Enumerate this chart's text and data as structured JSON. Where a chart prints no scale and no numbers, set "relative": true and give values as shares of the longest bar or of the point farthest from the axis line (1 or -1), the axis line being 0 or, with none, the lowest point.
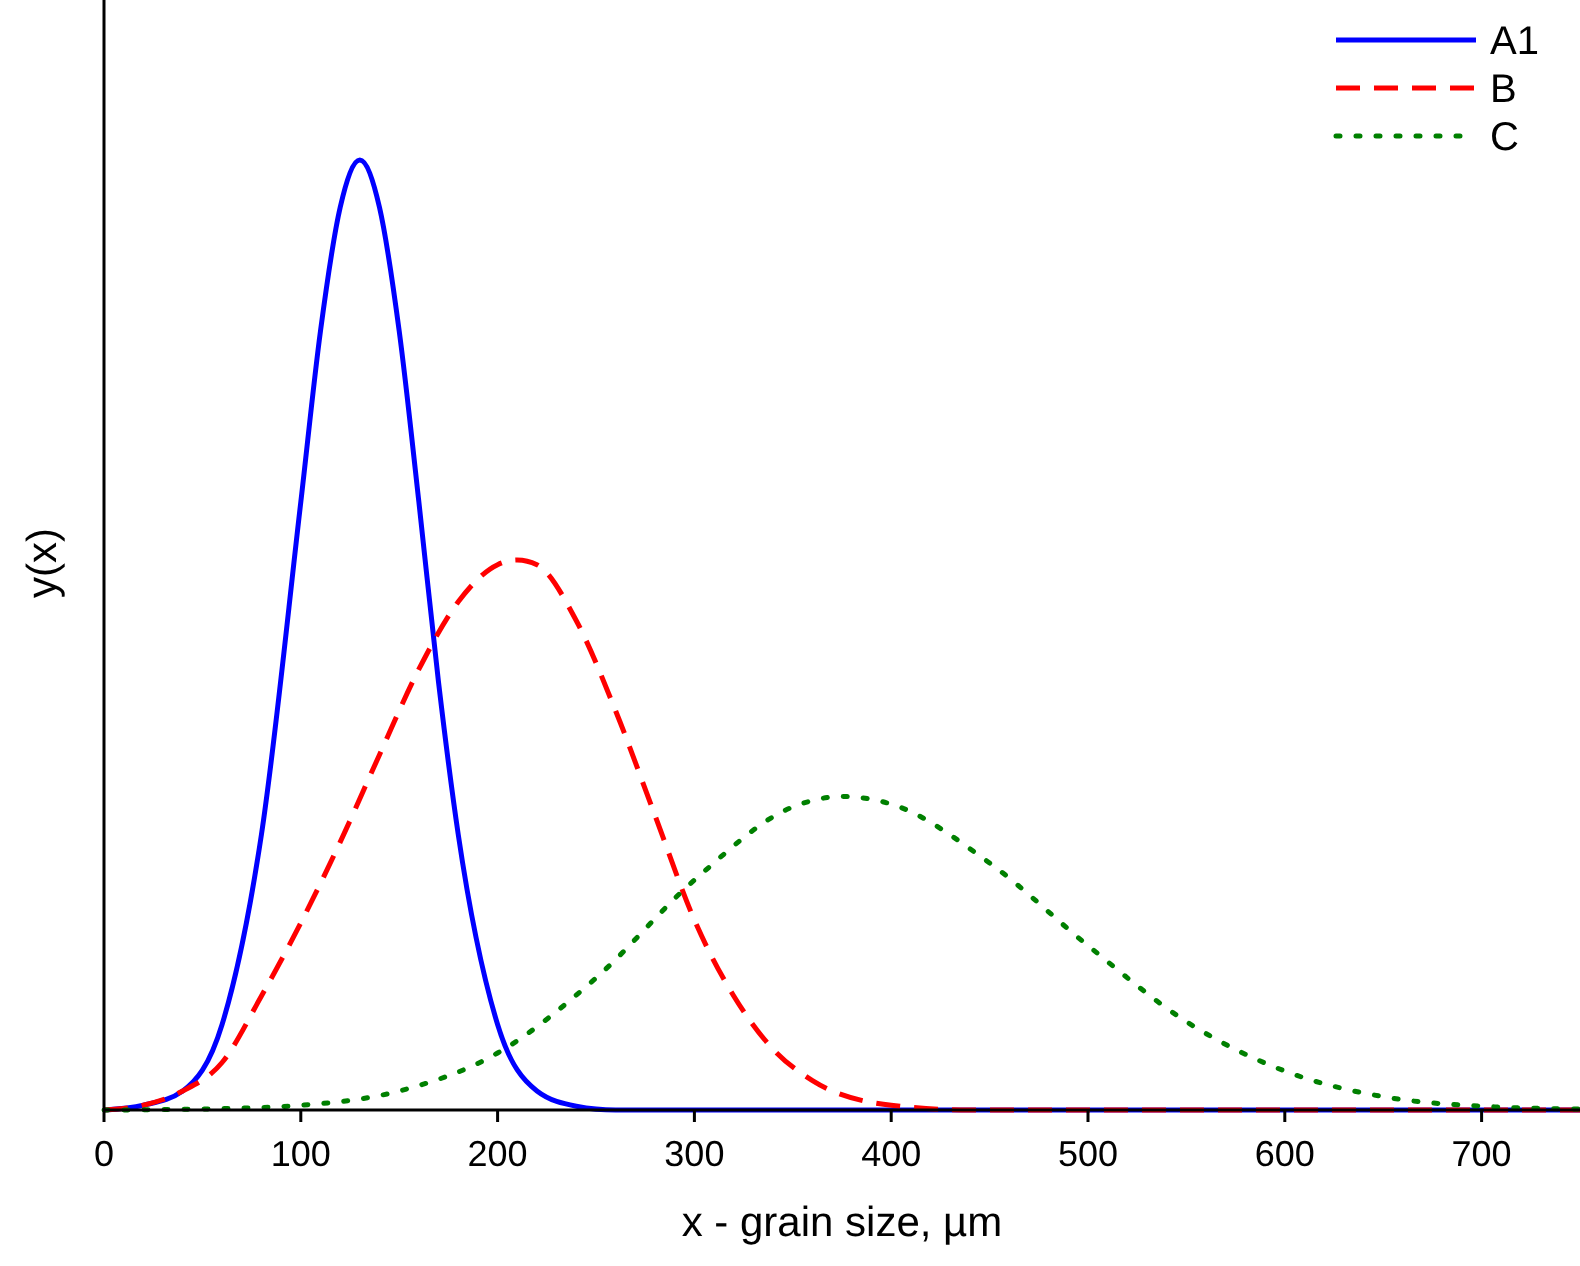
{
  "chart_data": {
    "type": "line",
    "relative": true,
    "xlabel": "x - grain size, µm",
    "ylabel": "y(x)",
    "xlim": [
      0,
      750
    ],
    "xticks": [
      0,
      100,
      200,
      300,
      400,
      500,
      600,
      700
    ],
    "legend": "top right",
    "grid": false,
    "series": [
      {
        "name": "A1",
        "color": "#0000ff",
        "line_style": "solid",
        "x": [
          0,
          20,
          40,
          60,
          80,
          100,
          110,
          120,
          130,
          140,
          150,
          160,
          170,
          180,
          200,
          220,
          240,
          260,
          750
        ],
        "values": [
          0,
          0.005,
          0.02,
          0.09,
          0.29,
          0.64,
          0.82,
          0.95,
          1,
          0.95,
          0.82,
          0.64,
          0.45,
          0.29,
          0.09,
          0.02,
          0.004,
          0,
          0
        ]
      },
      {
        "name": "B",
        "color": "#ff0000",
        "line_style": "dashed",
        "x": [
          0,
          20,
          40,
          60,
          80,
          100,
          120,
          140,
          160,
          180,
          200,
          210,
          220,
          240,
          260,
          280,
          300,
          320,
          340,
          360,
          400,
          440,
          750
        ],
        "values": [
          0,
          0.005,
          0.02,
          0.05,
          0.12,
          0.197,
          0.282,
          0.374,
          0.464,
          0.535,
          0.574,
          0.579,
          0.574,
          0.515,
          0.42,
          0.31,
          0.2,
          0.12,
          0.064,
          0.031,
          0.005,
          0,
          0
        ]
      },
      {
        "name": "C",
        "color": "#008000",
        "line_style": "dotted",
        "x": [
          0,
          50,
          100,
          150,
          200,
          250,
          300,
          350,
          375,
          400,
          450,
          500,
          550,
          600,
          650,
          700,
          750
        ],
        "values": [
          0,
          0.001,
          0.005,
          0.02,
          0.06,
          0.139,
          0.242,
          0.319,
          0.33,
          0.322,
          0.26,
          0.173,
          0.093,
          0.041,
          0.014,
          0.004,
          0.001
        ]
      }
    ]
  }
}
